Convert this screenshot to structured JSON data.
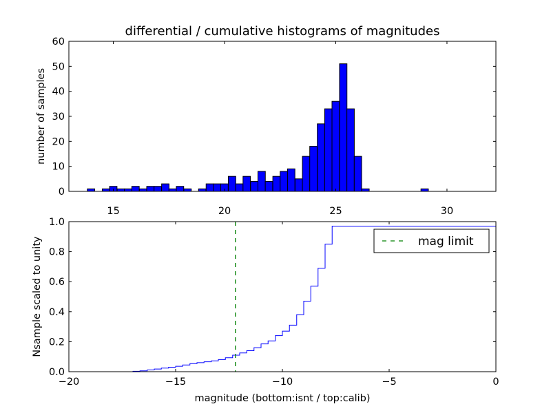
{
  "chart_data": [
    {
      "type": "bar",
      "title": "differential / cumulative histograms of magnitudes",
      "xlabel": "",
      "ylabel": "number of samples",
      "xlim": [
        13.0,
        32.2
      ],
      "ylim": [
        0,
        60
      ],
      "xticks": [
        15,
        20,
        25,
        30
      ],
      "yticks": [
        0,
        10,
        20,
        30,
        40,
        50,
        60
      ],
      "xtick_position": "bottom-labels",
      "bin_width": 0.3333,
      "bar_color": "#0000ff",
      "edge_color": "#000000",
      "bins": [
        {
          "left": 13.83,
          "count": 1
        },
        {
          "left": 14.5,
          "count": 1
        },
        {
          "left": 14.83,
          "count": 2
        },
        {
          "left": 15.17,
          "count": 1
        },
        {
          "left": 15.5,
          "count": 1
        },
        {
          "left": 15.83,
          "count": 2
        },
        {
          "left": 16.17,
          "count": 1
        },
        {
          "left": 16.5,
          "count": 2
        },
        {
          "left": 16.83,
          "count": 2
        },
        {
          "left": 17.17,
          "count": 3
        },
        {
          "left": 17.5,
          "count": 1
        },
        {
          "left": 17.83,
          "count": 2
        },
        {
          "left": 18.17,
          "count": 1
        },
        {
          "left": 18.83,
          "count": 1
        },
        {
          "left": 19.17,
          "count": 3
        },
        {
          "left": 19.5,
          "count": 3
        },
        {
          "left": 19.83,
          "count": 3
        },
        {
          "left": 20.17,
          "count": 6
        },
        {
          "left": 20.5,
          "count": 3
        },
        {
          "left": 20.83,
          "count": 6
        },
        {
          "left": 21.17,
          "count": 4
        },
        {
          "left": 21.5,
          "count": 8
        },
        {
          "left": 21.83,
          "count": 4
        },
        {
          "left": 22.17,
          "count": 6
        },
        {
          "left": 22.5,
          "count": 8
        },
        {
          "left": 22.83,
          "count": 9
        },
        {
          "left": 23.17,
          "count": 5
        },
        {
          "left": 23.5,
          "count": 14
        },
        {
          "left": 23.83,
          "count": 18
        },
        {
          "left": 24.17,
          "count": 27
        },
        {
          "left": 24.5,
          "count": 33
        },
        {
          "left": 24.83,
          "count": 36
        },
        {
          "left": 25.17,
          "count": 51
        },
        {
          "left": 25.5,
          "count": 33
        },
        {
          "left": 25.83,
          "count": 14
        },
        {
          "left": 26.17,
          "count": 1
        },
        {
          "left": 28.83,
          "count": 1
        }
      ]
    },
    {
      "type": "line",
      "title": "",
      "xlabel": "magnitude (bottom:isnt / top:calib)",
      "ylabel": "Nsample scaled to unity",
      "xlim": [
        -20,
        0
      ],
      "ylim": [
        0.0,
        1.0
      ],
      "xticks": [
        -20,
        -15,
        -10,
        -5,
        0
      ],
      "xtick_labels": [
        "−20",
        "−15",
        "−10",
        "−5",
        "0"
      ],
      "yticks": [
        0.0,
        0.2,
        0.4,
        0.6,
        0.8,
        1.0
      ],
      "ytick_labels": [
        "0.0",
        "0.2",
        "0.4",
        "0.6",
        "0.8",
        "1.0"
      ],
      "legend": {
        "position": "top-right",
        "entries": [
          {
            "label": "mag limit",
            "style": "dashed",
            "color": "#008000"
          }
        ]
      },
      "series": [
        {
          "style": "step",
          "color": "#0000ff",
          "x": [
            -17.0,
            -16.67,
            -16.33,
            -16.0,
            -15.67,
            -15.33,
            -15.0,
            -14.67,
            -14.33,
            -14.0,
            -13.67,
            -13.33,
            -13.0,
            -12.67,
            -12.33,
            -12.0,
            -11.67,
            -11.33,
            -11.0,
            -10.67,
            -10.33,
            -10.0,
            -9.67,
            -9.33,
            -9.0,
            -8.67,
            -8.33,
            -8.0,
            -7.67,
            0.0
          ],
          "y": [
            0.003,
            0.006,
            0.012,
            0.018,
            0.024,
            0.03,
            0.036,
            0.045,
            0.054,
            0.06,
            0.066,
            0.072,
            0.081,
            0.093,
            0.11,
            0.125,
            0.14,
            0.16,
            0.185,
            0.205,
            0.24,
            0.27,
            0.31,
            0.38,
            0.47,
            0.57,
            0.69,
            0.85,
            0.97,
            1.0
          ]
        },
        {
          "name": "mag limit",
          "style": "vline-dashed",
          "color": "#008000",
          "x": -12.2
        }
      ]
    }
  ]
}
